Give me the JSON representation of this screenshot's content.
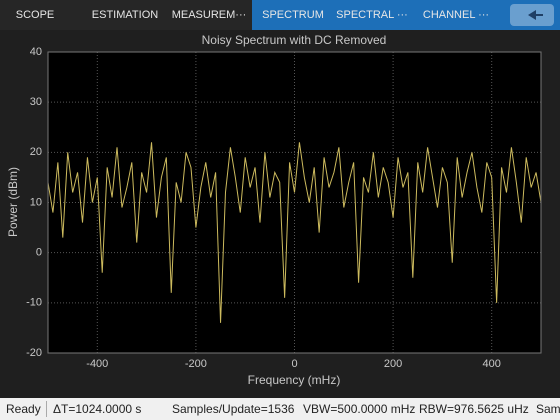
{
  "toolbar": {
    "tabs": [
      "SCOPE",
      "ESTIMATION",
      "MEASUREM···"
    ],
    "active_tabs": [
      "SPECTRUM",
      "SPECTRAL ···",
      "CHANNEL ···"
    ]
  },
  "chart_data": {
    "type": "line",
    "title": "Noisy Spectrum with DC Removed",
    "x_label": "Frequency (mHz)",
    "y_label": "Power (dBm)",
    "color": "#cdbb5e",
    "grid": true,
    "xlim": [
      -500,
      500
    ],
    "ylim": [
      -20,
      40
    ],
    "xticks": [
      -400,
      -200,
      0,
      200,
      400
    ],
    "yticks": [
      -20,
      -10,
      0,
      10,
      20,
      30,
      40
    ],
    "x": [
      -500,
      -490,
      -480,
      -470,
      -460,
      -450,
      -440,
      -430,
      -420,
      -410,
      -400,
      -390,
      -380,
      -370,
      -360,
      -350,
      -340,
      -330,
      -320,
      -310,
      -300,
      -290,
      -280,
      -270,
      -260,
      -250,
      -240,
      -230,
      -220,
      -210,
      -200,
      -190,
      -180,
      -170,
      -160,
      -150,
      -140,
      -130,
      -120,
      -110,
      -100,
      -90,
      -80,
      -70,
      -60,
      -50,
      -40,
      -30,
      -20,
      -10,
      0,
      10,
      20,
      30,
      40,
      50,
      60,
      70,
      80,
      90,
      100,
      110,
      120,
      130,
      140,
      150,
      160,
      170,
      180,
      190,
      200,
      210,
      220,
      230,
      240,
      250,
      260,
      270,
      280,
      290,
      300,
      310,
      320,
      330,
      340,
      350,
      360,
      370,
      380,
      390,
      400,
      410,
      420,
      430,
      440,
      450,
      460,
      470,
      480,
      490,
      500
    ],
    "values": [
      14,
      8,
      18,
      3,
      20,
      12,
      16,
      6,
      19,
      10,
      15,
      -4,
      17,
      11,
      21,
      9,
      13,
      18,
      2,
      16,
      12,
      22,
      7,
      15,
      19,
      -8,
      14,
      10,
      20,
      17,
      5,
      13,
      18,
      11,
      16,
      -14,
      12,
      21,
      15,
      8,
      19,
      13,
      17,
      6,
      20,
      11,
      16,
      14,
      -9,
      18,
      12,
      22,
      15,
      10,
      17,
      4,
      19,
      13,
      16,
      21,
      9,
      14,
      18,
      -6,
      15,
      12,
      20,
      11,
      17,
      14,
      7,
      19,
      13,
      16,
      -5,
      18,
      12,
      21,
      15,
      9,
      17,
      14,
      -2,
      19,
      11,
      16,
      20,
      13,
      8,
      18,
      15,
      -10,
      17,
      12,
      21,
      14,
      6,
      19,
      13,
      16,
      10
    ]
  },
  "status_bar": {
    "state": "Ready",
    "items": [
      "ΔT=1024.0000 s",
      "Samples/Update=1536",
      "VBW=500.0000 mHz",
      "RBW=976.5625 uHz",
      "Sam"
    ]
  }
}
